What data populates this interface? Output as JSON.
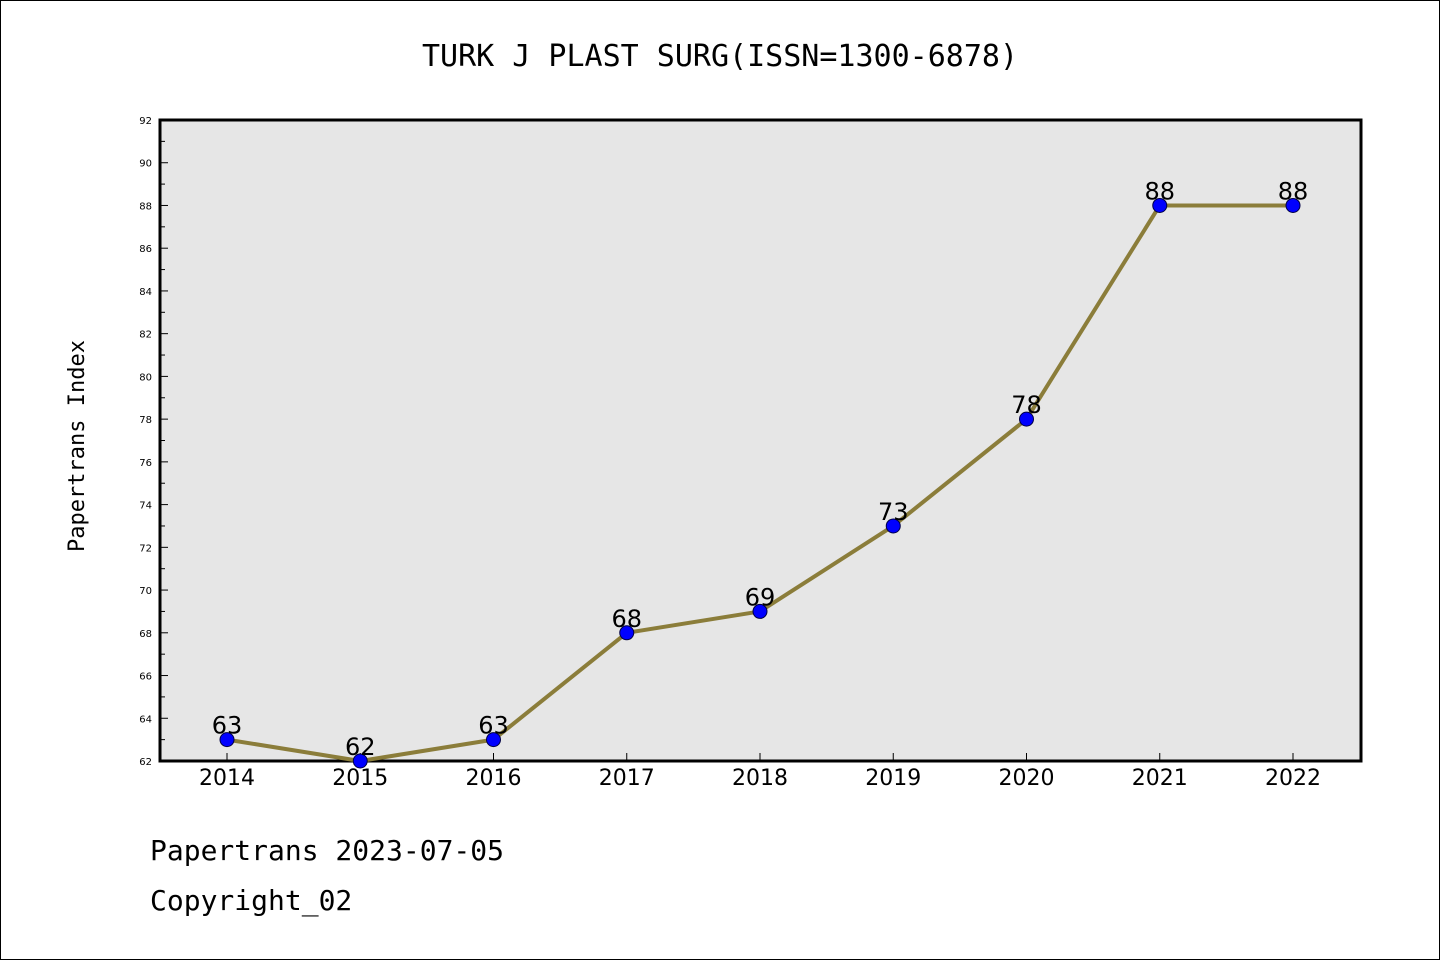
{
  "chart_data": {
    "type": "line",
    "title": "TURK J PLAST SURG(ISSN=1300-6878)",
    "xlabel": "",
    "ylabel": "Papertrans Index",
    "categories": [
      "2014",
      "2015",
      "2016",
      "2017",
      "2018",
      "2019",
      "2020",
      "2021",
      "2022"
    ],
    "values": [
      63,
      62,
      63,
      68,
      69,
      73,
      78,
      88,
      88
    ],
    "data_labels": [
      "63",
      "62",
      "63",
      "68",
      "69",
      "73",
      "78",
      "88",
      "88"
    ],
    "ylim": [
      62,
      92
    ],
    "y_ticks": [
      "62",
      "64",
      "66",
      "68",
      "70",
      "72",
      "74",
      "76",
      "78",
      "80",
      "82",
      "84",
      "86",
      "88",
      "90",
      "92"
    ],
    "grid": false,
    "legend": "none",
    "colors": {
      "line": "#8b7d3a",
      "marker": "#0000ff",
      "plot_background": "#e6e6e6"
    }
  },
  "footer": {
    "date_text": "Papertrans 2023-07-05",
    "copyright_text": "Copyright_02"
  }
}
